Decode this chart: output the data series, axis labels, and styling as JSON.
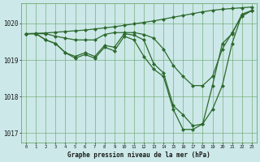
{
  "title": "Graphe pression niveau de la mer (hPa)",
  "bg_color": "#cce8e8",
  "grid_color": "#5a9a5a",
  "line_color": "#2d6a2d",
  "marker": "D",
  "marker_size": 2.0,
  "line_width": 0.9,
  "xlim": [
    -0.5,
    23.5
  ],
  "ylim": [
    1016.75,
    1020.55
  ],
  "yticks": [
    1017,
    1018,
    1019,
    1020
  ],
  "xticks": [
    0,
    1,
    2,
    3,
    4,
    5,
    6,
    7,
    8,
    9,
    10,
    11,
    12,
    13,
    14,
    15,
    16,
    17,
    18,
    19,
    20,
    21,
    22,
    23
  ],
  "series": [
    {
      "x": [
        0,
        1,
        2,
        3,
        4,
        5,
        6,
        7,
        8,
        9,
        10,
        11,
        12,
        13,
        14,
        15,
        16,
        17,
        18,
        19,
        20,
        21,
        22,
        23
      ],
      "y": [
        1019.72,
        1019.73,
        1019.74,
        1019.76,
        1019.78,
        1019.8,
        1019.82,
        1019.85,
        1019.88,
        1019.91,
        1019.95,
        1019.99,
        1020.03,
        1020.07,
        1020.12,
        1020.17,
        1020.22,
        1020.27,
        1020.32,
        1020.36,
        1020.39,
        1020.41,
        1020.43,
        1020.45
      ]
    },
    {
      "x": [
        0,
        1,
        2,
        3,
        4,
        5,
        6,
        7,
        8,
        9,
        10,
        11,
        12,
        13,
        14,
        15,
        16,
        17,
        18,
        19,
        20,
        21,
        22,
        23
      ],
      "y": [
        1019.72,
        1019.72,
        1019.72,
        1019.65,
        1019.6,
        1019.55,
        1019.55,
        1019.55,
        1019.7,
        1019.75,
        1019.75,
        1019.75,
        1019.7,
        1019.6,
        1019.3,
        1018.85,
        1018.55,
        1018.3,
        1018.3,
        1018.55,
        1019.3,
        1019.75,
        1020.2,
        1020.35
      ]
    },
    {
      "x": [
        0,
        1,
        2,
        3,
        4,
        5,
        6,
        7,
        8,
        9,
        10,
        11,
        12,
        13,
        14,
        15,
        16,
        17,
        18,
        19,
        20,
        21,
        22,
        23
      ],
      "y": [
        1019.72,
        1019.72,
        1019.55,
        1019.45,
        1019.2,
        1019.1,
        1019.2,
        1019.1,
        1019.4,
        1019.35,
        1019.72,
        1019.68,
        1019.55,
        1018.9,
        1018.65,
        1017.75,
        1017.5,
        1017.2,
        1017.25,
        1018.3,
        1019.45,
        1019.72,
        1020.25,
        1020.35
      ]
    },
    {
      "x": [
        0,
        1,
        2,
        3,
        4,
        5,
        6,
        7,
        8,
        9,
        10,
        11,
        12,
        13,
        14,
        15,
        16,
        17,
        18,
        19,
        20,
        21,
        22,
        23
      ],
      "y": [
        1019.72,
        1019.72,
        1019.55,
        1019.45,
        1019.2,
        1019.05,
        1019.15,
        1019.05,
        1019.35,
        1019.25,
        1019.65,
        1019.55,
        1019.1,
        1018.75,
        1018.55,
        1017.65,
        1017.1,
        1017.1,
        1017.25,
        1017.65,
        1018.3,
        1019.45,
        1020.25,
        1020.35
      ]
    }
  ]
}
